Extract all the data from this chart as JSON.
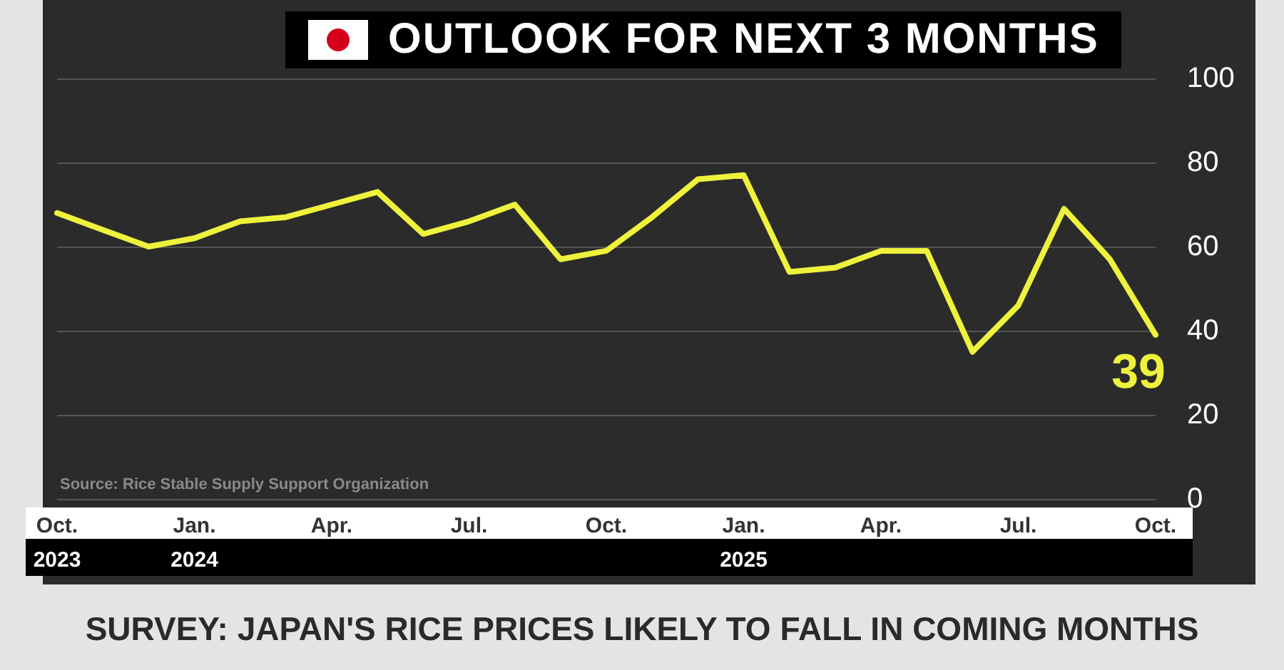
{
  "chart_data": {
    "type": "line",
    "title": "OUTLOOK FOR NEXT 3 MONTHS",
    "subtitle": "SURVEY: JAPAN'S RICE PRICES LIKELY TO FALL IN COMING MONTHS",
    "annotations": [
      "Source: Rice Stable Supply Support Organization"
    ],
    "categories": [
      "Oct.\n2023",
      null,
      null,
      "Jan.\n2024",
      null,
      null,
      "Apr.",
      null,
      null,
      "Jul.",
      null,
      null,
      "Oct.",
      null,
      null,
      "Jan.\n2025",
      null,
      null,
      "Apr.",
      null,
      null,
      "Jul.",
      null,
      null,
      "Oct."
    ],
    "series": [
      {
        "color": "#eef23c",
        "values": [
          68,
          64,
          60,
          62,
          66,
          67,
          70,
          73,
          63,
          66,
          70,
          57,
          59,
          67,
          76,
          77,
          54,
          55,
          59,
          59,
          35,
          46,
          69,
          57,
          39
        ],
        "value_labels": [
          null,
          null,
          null,
          null,
          null,
          null,
          null,
          null,
          null,
          null,
          null,
          null,
          null,
          null,
          null,
          null,
          null,
          null,
          null,
          null,
          null,
          null,
          null,
          null,
          "39"
        ]
      }
    ],
    "ylim": [
      0,
      100
    ],
    "yticks": [
      0,
      20,
      40,
      60,
      80,
      100
    ],
    "grid": "y",
    "marker": "none",
    "line_style": "solid"
  }
}
